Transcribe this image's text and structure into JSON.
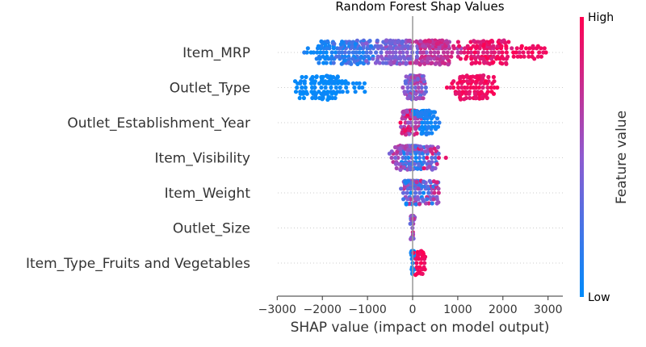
{
  "chart_data": {
    "type": "scatter",
    "title": "Random Forest Shap Values",
    "xlabel": "SHAP value (impact on model output)",
    "xlim": [
      -3000,
      3000
    ],
    "xticks": [
      "−3000",
      "−2000",
      "−1000",
      "0",
      "1000",
      "2000",
      "3000"
    ],
    "features": [
      "Item_MRP",
      "Outlet_Type",
      "Outlet_Establishment_Year",
      "Item_Visibility",
      "Item_Weight",
      "Outlet_Size",
      "Item_Type_Fruits and Vegetables"
    ],
    "colorbar": {
      "label": "Feature value",
      "high_label": "High",
      "low_label": "Low",
      "low_color": "#008bfb",
      "high_color": "#ff0051"
    },
    "point_summary": [
      {
        "feature": "Item_MRP",
        "min": -2400,
        "max": 3050,
        "clusters": [
          {
            "center": -2000,
            "spread": 350,
            "n": 45,
            "color_low": 0.0,
            "color_high": 0.15
          },
          {
            "center": -1300,
            "spread": 350,
            "n": 110,
            "color_low": 0.05,
            "color_high": 0.35
          },
          {
            "center": -400,
            "spread": 400,
            "n": 130,
            "color_low": 0.3,
            "color_high": 0.6
          },
          {
            "center": 500,
            "spread": 450,
            "n": 140,
            "color_low": 0.6,
            "color_high": 0.85
          },
          {
            "center": 1600,
            "spread": 500,
            "n": 120,
            "color_low": 0.8,
            "color_high": 1.0
          },
          {
            "center": 2600,
            "spread": 300,
            "n": 25,
            "color_low": 0.9,
            "color_high": 1.0
          }
        ]
      },
      {
        "feature": "Outlet_Type",
        "min": -2750,
        "max": 2100,
        "clusters": [
          {
            "center": -1950,
            "spread": 600,
            "n": 110,
            "color_low": 0.0,
            "color_high": 0.05
          },
          {
            "center": 60,
            "spread": 180,
            "n": 140,
            "color_low": 0.3,
            "color_high": 0.75
          },
          {
            "center": 1350,
            "spread": 450,
            "n": 110,
            "color_low": 0.85,
            "color_high": 1.0
          }
        ]
      },
      {
        "feature": "Outlet_Establishment_Year",
        "min": -350,
        "max": 650,
        "clusters": [
          {
            "center": -40,
            "spread": 150,
            "n": 170,
            "color_low": 0.5,
            "color_high": 1.0
          },
          {
            "center": 300,
            "spread": 200,
            "n": 80,
            "color_low": 0.0,
            "color_high": 0.15
          }
        ]
      },
      {
        "feature": "Item_Visibility",
        "min": -550,
        "max": 1100,
        "clusters": [
          {
            "center": 0,
            "spread": 170,
            "n": 200,
            "color_low": 0.0,
            "color_high": 0.6
          },
          {
            "center": -300,
            "spread": 150,
            "n": 40,
            "color_low": 0.4,
            "color_high": 0.8
          },
          {
            "center": 400,
            "spread": 200,
            "n": 40,
            "color_low": 0.2,
            "color_high": 0.9
          }
        ]
      },
      {
        "feature": "Item_Weight",
        "min": -450,
        "max": 750,
        "clusters": [
          {
            "center": 0,
            "spread": 170,
            "n": 220,
            "color_low": 0.0,
            "color_high": 0.8
          },
          {
            "center": 400,
            "spread": 180,
            "n": 40,
            "color_low": 0.1,
            "color_high": 0.9
          }
        ]
      },
      {
        "feature": "Outlet_Size",
        "min": -100,
        "max": 100,
        "clusters": [
          {
            "center": 0,
            "spread": 35,
            "n": 160,
            "color_low": 0.3,
            "color_high": 0.8
          }
        ]
      },
      {
        "feature": "Item_Type_Fruits and Vegetables",
        "min": -150,
        "max": 350,
        "clusters": [
          {
            "center": 0,
            "spread": 25,
            "n": 130,
            "color_low": 0.0,
            "color_high": 0.1
          },
          {
            "center": 180,
            "spread": 110,
            "n": 40,
            "color_low": 0.9,
            "color_high": 1.0
          }
        ]
      }
    ]
  }
}
